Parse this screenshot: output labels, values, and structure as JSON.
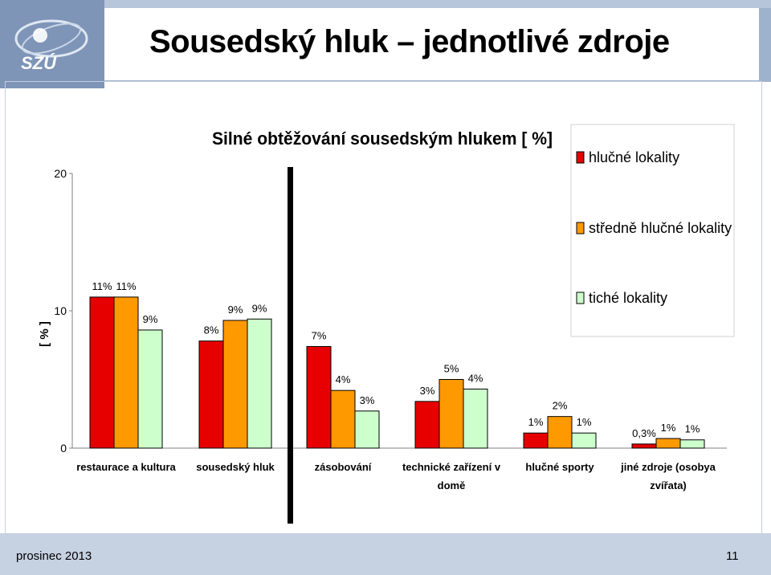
{
  "slide": {
    "title": "Sousedský hluk – jednotlivé zdroje",
    "logo_text": "SZÚ",
    "footer_date": "prosinec 2013",
    "page_number": "11"
  },
  "chart_data": {
    "type": "bar",
    "title": "Silné obtěžování sousedským hlukem [ %]",
    "ylabel": "[ % ]",
    "ylim": [
      0,
      20
    ],
    "yticks": [
      "0",
      "10",
      "20"
    ],
    "categories": [
      [
        "restaurace a kultura"
      ],
      [
        "sousedský hluk"
      ],
      [
        "zásobování"
      ],
      [
        "technické zařízení v",
        "domě"
      ],
      [
        "hlučné sporty"
      ],
      [
        "jiné zdroje (osobya",
        "zvířata)"
      ]
    ],
    "series": [
      {
        "name": "hlučné lokality",
        "color": "#e60000",
        "values": [
          11,
          7.8,
          7.4,
          3.4,
          1.1,
          0.3
        ],
        "labels": [
          "11%",
          "8%",
          "7%",
          "3%",
          "1%",
          "0,3%"
        ]
      },
      {
        "name": "středně hlučné lokality",
        "color": "#ff9900",
        "values": [
          11,
          9.3,
          4.2,
          5,
          2.3,
          0.7
        ],
        "labels": [
          "11%",
          "9%",
          "4%",
          "5%",
          "2%",
          "1%"
        ]
      },
      {
        "name": "tiché lokality",
        "color": "#ccffcc",
        "values": [
          8.6,
          9.4,
          2.7,
          4.3,
          1.1,
          0.6
        ],
        "labels": [
          "9%",
          "9%",
          "3%",
          "4%",
          "1%",
          "1%"
        ]
      }
    ],
    "legend_position": "top-right",
    "grid": false
  }
}
